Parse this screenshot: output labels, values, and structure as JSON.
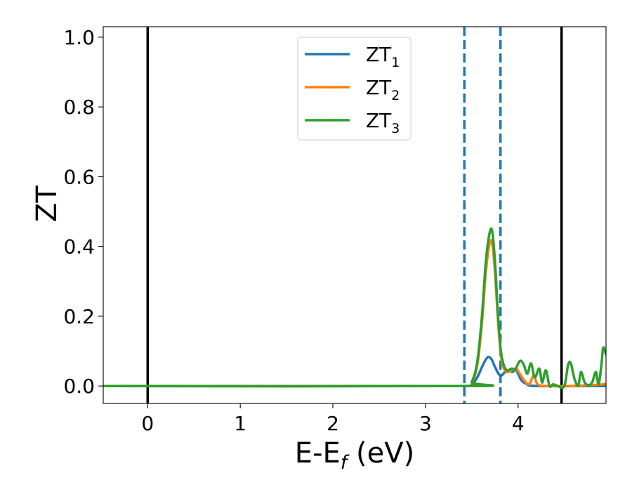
{
  "chart_data": {
    "type": "line",
    "xlabel_main": "E-E",
    "xlabel_sub": "f",
    "xlabel_unit": " (eV)",
    "ylabel": "ZT",
    "xlim": [
      -0.48,
      4.95
    ],
    "ylim": [
      -0.05,
      1.03
    ],
    "xticks": [
      0,
      1,
      2,
      3,
      4
    ],
    "xtick_labels": [
      "0",
      "1",
      "2",
      "3",
      "4"
    ],
    "yticks": [
      0.0,
      0.2,
      0.4,
      0.6,
      0.8,
      1.0
    ],
    "ytick_labels": [
      "0.0",
      "0.2",
      "0.4",
      "0.6",
      "0.8",
      "1.0"
    ],
    "grid": false,
    "legend_position": "top-center",
    "vlines": [
      {
        "x": 0.0,
        "style": "solid",
        "color": "#000000"
      },
      {
        "x": 4.47,
        "style": "solid",
        "color": "#000000"
      },
      {
        "x": 3.42,
        "style": "dashed",
        "color": "#1f77b4"
      },
      {
        "x": 3.81,
        "style": "dashed",
        "color": "#1f77b4"
      }
    ],
    "series": [
      {
        "name_base": "ZT",
        "name_sub": "1",
        "color": "#1f77b4",
        "points": [
          [
            -0.48,
            0
          ],
          [
            3.42,
            0
          ],
          [
            3.5,
            0.005
          ],
          [
            3.56,
            0.025
          ],
          [
            3.62,
            0.06
          ],
          [
            3.67,
            0.082
          ],
          [
            3.71,
            0.078
          ],
          [
            3.75,
            0.055
          ],
          [
            3.79,
            0.035
          ],
          [
            3.82,
            0.03
          ],
          [
            3.86,
            0.04
          ],
          [
            3.9,
            0.045
          ],
          [
            3.94,
            0.04
          ],
          [
            3.97,
            0.048
          ],
          [
            4.0,
            0.035
          ],
          [
            4.04,
            0.015
          ],
          [
            4.1,
            0.005
          ],
          [
            4.2,
            0.0
          ],
          [
            4.95,
            0.0
          ]
        ]
      },
      {
        "name_base": "ZT",
        "name_sub": "2",
        "color": "#ff7f0e",
        "points": [
          [
            -0.48,
            0
          ],
          [
            3.42,
            0
          ],
          [
            3.5,
            0.01
          ],
          [
            3.56,
            0.06
          ],
          [
            3.61,
            0.18
          ],
          [
            3.65,
            0.32
          ],
          [
            3.69,
            0.405
          ],
          [
            3.72,
            0.41
          ],
          [
            3.75,
            0.33
          ],
          [
            3.78,
            0.2
          ],
          [
            3.81,
            0.1
          ],
          [
            3.84,
            0.055
          ],
          [
            3.88,
            0.04
          ],
          [
            3.93,
            0.045
          ],
          [
            3.98,
            0.05
          ],
          [
            4.02,
            0.035
          ],
          [
            4.07,
            0.015
          ],
          [
            4.12,
            0.005
          ],
          [
            4.17,
            0.03
          ],
          [
            4.21,
            0.005
          ],
          [
            4.3,
            0.0
          ],
          [
            4.55,
            0.0
          ],
          [
            4.93,
            0.005
          ],
          [
            4.95,
            0.008
          ]
        ]
      },
      {
        "name_base": "ZT",
        "name_sub": "3",
        "color": "#2ca02c",
        "points": [
          [
            -0.48,
            0
          ],
          [
            3.42,
            0
          ],
          [
            3.5,
            0.012
          ],
          [
            3.56,
            0.07
          ],
          [
            3.61,
            0.2
          ],
          [
            3.65,
            0.35
          ],
          [
            3.69,
            0.435
          ],
          [
            3.72,
            0.445
          ],
          [
            3.75,
            0.36
          ],
          [
            3.78,
            0.22
          ],
          [
            3.81,
            0.11
          ],
          [
            3.84,
            0.065
          ],
          [
            3.88,
            0.045
          ],
          [
            3.93,
            0.05
          ],
          [
            3.97,
            0.048
          ],
          [
            4.02,
            0.072
          ],
          [
            4.06,
            0.062
          ],
          [
            4.1,
            0.035
          ],
          [
            4.14,
            0.065
          ],
          [
            4.18,
            0.025
          ],
          [
            4.23,
            0.05
          ],
          [
            4.26,
            0.01
          ],
          [
            4.3,
            0.045
          ],
          [
            4.34,
            0.0
          ],
          [
            4.38,
            0.005
          ],
          [
            4.43,
            0.0
          ],
          [
            4.5,
            0.0
          ],
          [
            4.54,
            0.06
          ],
          [
            4.57,
            0.065
          ],
          [
            4.61,
            0.02
          ],
          [
            4.65,
            0.002
          ],
          [
            4.68,
            0.04
          ],
          [
            4.72,
            0.01
          ],
          [
            4.76,
            0.003
          ],
          [
            4.8,
            0.01
          ],
          [
            4.84,
            0.04
          ],
          [
            4.87,
            0.005
          ],
          [
            4.9,
            0.06
          ],
          [
            4.92,
            0.11
          ],
          [
            4.95,
            0.09
          ]
        ]
      }
    ]
  }
}
